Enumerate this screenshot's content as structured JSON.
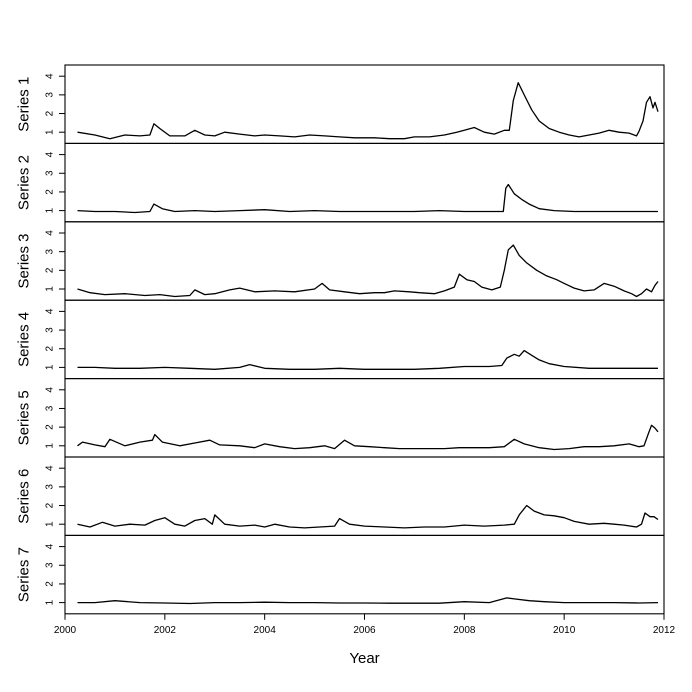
{
  "chart_data": {
    "type": "line",
    "title": "",
    "xlabel": "Year",
    "xlim": [
      2000,
      2012
    ],
    "x_ticks": [
      "2000",
      "2002",
      "2004",
      "2006",
      "2008",
      "2010",
      "2012"
    ],
    "ylim": [
      0.4,
      4.6
    ],
    "y_ticks": [
      "1",
      "2",
      "3",
      "4"
    ],
    "grid": false,
    "legend": "none",
    "series": [
      {
        "name": "Series 1",
        "points": [
          [
            2000.25,
            1.0
          ],
          [
            2000.6,
            0.85
          ],
          [
            2000.9,
            0.65
          ],
          [
            2001.2,
            0.85
          ],
          [
            2001.5,
            0.8
          ],
          [
            2001.7,
            0.85
          ],
          [
            2001.78,
            1.45
          ],
          [
            2001.9,
            1.2
          ],
          [
            2002.1,
            0.8
          ],
          [
            2002.4,
            0.8
          ],
          [
            2002.6,
            1.1
          ],
          [
            2002.8,
            0.85
          ],
          [
            2003.0,
            0.8
          ],
          [
            2003.2,
            1.0
          ],
          [
            2003.5,
            0.9
          ],
          [
            2003.8,
            0.8
          ],
          [
            2004.0,
            0.85
          ],
          [
            2004.3,
            0.8
          ],
          [
            2004.6,
            0.75
          ],
          [
            2004.9,
            0.85
          ],
          [
            2005.2,
            0.8
          ],
          [
            2005.5,
            0.75
          ],
          [
            2005.8,
            0.7
          ],
          [
            2006.2,
            0.7
          ],
          [
            2006.5,
            0.65
          ],
          [
            2006.8,
            0.65
          ],
          [
            2007.0,
            0.75
          ],
          [
            2007.3,
            0.75
          ],
          [
            2007.6,
            0.85
          ],
          [
            2007.85,
            1.0
          ],
          [
            2008.0,
            1.1
          ],
          [
            2008.2,
            1.25
          ],
          [
            2008.4,
            1.0
          ],
          [
            2008.6,
            0.9
          ],
          [
            2008.8,
            1.1
          ],
          [
            2008.9,
            1.1
          ],
          [
            2008.98,
            2.7
          ],
          [
            2009.08,
            3.65
          ],
          [
            2009.2,
            3.0
          ],
          [
            2009.35,
            2.2
          ],
          [
            2009.5,
            1.6
          ],
          [
            2009.7,
            1.2
          ],
          [
            2009.9,
            1.0
          ],
          [
            2010.1,
            0.85
          ],
          [
            2010.3,
            0.75
          ],
          [
            2010.5,
            0.85
          ],
          [
            2010.7,
            0.95
          ],
          [
            2010.9,
            1.1
          ],
          [
            2011.1,
            1.0
          ],
          [
            2011.3,
            0.95
          ],
          [
            2011.45,
            0.8
          ],
          [
            2011.5,
            1.05
          ],
          [
            2011.58,
            1.6
          ],
          [
            2011.65,
            2.6
          ],
          [
            2011.72,
            2.9
          ],
          [
            2011.78,
            2.3
          ],
          [
            2011.82,
            2.6
          ],
          [
            2011.88,
            2.1
          ]
        ]
      },
      {
        "name": "Series 2",
        "points": [
          [
            2000.25,
            1.0
          ],
          [
            2000.6,
            0.95
          ],
          [
            2001.0,
            0.95
          ],
          [
            2001.4,
            0.9
          ],
          [
            2001.7,
            0.95
          ],
          [
            2001.78,
            1.35
          ],
          [
            2001.95,
            1.1
          ],
          [
            2002.2,
            0.95
          ],
          [
            2002.6,
            1.0
          ],
          [
            2003.0,
            0.95
          ],
          [
            2003.5,
            1.0
          ],
          [
            2004.0,
            1.05
          ],
          [
            2004.5,
            0.95
          ],
          [
            2005.0,
            1.0
          ],
          [
            2005.5,
            0.95
          ],
          [
            2006.0,
            0.95
          ],
          [
            2006.5,
            0.95
          ],
          [
            2007.0,
            0.95
          ],
          [
            2007.5,
            1.0
          ],
          [
            2008.0,
            0.95
          ],
          [
            2008.5,
            0.95
          ],
          [
            2008.78,
            0.95
          ],
          [
            2008.83,
            2.2
          ],
          [
            2008.88,
            2.4
          ],
          [
            2009.0,
            1.9
          ],
          [
            2009.15,
            1.6
          ],
          [
            2009.3,
            1.35
          ],
          [
            2009.5,
            1.1
          ],
          [
            2009.8,
            1.0
          ],
          [
            2010.2,
            0.95
          ],
          [
            2010.6,
            0.95
          ],
          [
            2011.0,
            0.95
          ],
          [
            2011.5,
            0.95
          ],
          [
            2011.88,
            0.95
          ]
        ]
      },
      {
        "name": "Series 3",
        "points": [
          [
            2000.25,
            1.0
          ],
          [
            2000.5,
            0.8
          ],
          [
            2000.8,
            0.7
          ],
          [
            2001.2,
            0.75
          ],
          [
            2001.6,
            0.65
          ],
          [
            2001.9,
            0.7
          ],
          [
            2002.2,
            0.6
          ],
          [
            2002.5,
            0.65
          ],
          [
            2002.6,
            0.95
          ],
          [
            2002.8,
            0.7
          ],
          [
            2003.0,
            0.75
          ],
          [
            2003.3,
            0.95
          ],
          [
            2003.5,
            1.05
          ],
          [
            2003.8,
            0.85
          ],
          [
            2004.2,
            0.9
          ],
          [
            2004.6,
            0.85
          ],
          [
            2005.0,
            1.0
          ],
          [
            2005.15,
            1.3
          ],
          [
            2005.3,
            0.95
          ],
          [
            2005.6,
            0.85
          ],
          [
            2005.9,
            0.75
          ],
          [
            2006.2,
            0.8
          ],
          [
            2006.4,
            0.8
          ],
          [
            2006.6,
            0.9
          ],
          [
            2006.9,
            0.85
          ],
          [
            2007.1,
            0.8
          ],
          [
            2007.4,
            0.75
          ],
          [
            2007.6,
            0.9
          ],
          [
            2007.8,
            1.1
          ],
          [
            2007.9,
            1.8
          ],
          [
            2008.05,
            1.5
          ],
          [
            2008.2,
            1.4
          ],
          [
            2008.35,
            1.1
          ],
          [
            2008.55,
            0.95
          ],
          [
            2008.72,
            1.1
          ],
          [
            2008.8,
            2.0
          ],
          [
            2008.88,
            3.1
          ],
          [
            2008.98,
            3.35
          ],
          [
            2009.1,
            2.8
          ],
          [
            2009.25,
            2.4
          ],
          [
            2009.45,
            2.0
          ],
          [
            2009.65,
            1.7
          ],
          [
            2009.85,
            1.5
          ],
          [
            2010.0,
            1.3
          ],
          [
            2010.2,
            1.05
          ],
          [
            2010.4,
            0.9
          ],
          [
            2010.6,
            0.95
          ],
          [
            2010.8,
            1.3
          ],
          [
            2011.0,
            1.15
          ],
          [
            2011.2,
            0.9
          ],
          [
            2011.35,
            0.75
          ],
          [
            2011.45,
            0.6
          ],
          [
            2011.55,
            0.75
          ],
          [
            2011.65,
            1.0
          ],
          [
            2011.75,
            0.85
          ],
          [
            2011.82,
            1.2
          ],
          [
            2011.88,
            1.4
          ]
        ]
      },
      {
        "name": "Series 4",
        "points": [
          [
            2000.25,
            1.0
          ],
          [
            2000.6,
            1.0
          ],
          [
            2001.0,
            0.95
          ],
          [
            2001.5,
            0.95
          ],
          [
            2002.0,
            1.0
          ],
          [
            2002.5,
            0.95
          ],
          [
            2003.0,
            0.9
          ],
          [
            2003.5,
            1.0
          ],
          [
            2003.7,
            1.15
          ],
          [
            2004.0,
            0.95
          ],
          [
            2004.5,
            0.9
          ],
          [
            2005.0,
            0.9
          ],
          [
            2005.5,
            0.95
          ],
          [
            2006.0,
            0.9
          ],
          [
            2006.5,
            0.9
          ],
          [
            2007.0,
            0.9
          ],
          [
            2007.5,
            0.95
          ],
          [
            2008.0,
            1.05
          ],
          [
            2008.5,
            1.05
          ],
          [
            2008.75,
            1.1
          ],
          [
            2008.85,
            1.5
          ],
          [
            2009.0,
            1.7
          ],
          [
            2009.1,
            1.6
          ],
          [
            2009.2,
            1.9
          ],
          [
            2009.35,
            1.65
          ],
          [
            2009.5,
            1.4
          ],
          [
            2009.7,
            1.2
          ],
          [
            2010.0,
            1.05
          ],
          [
            2010.5,
            0.95
          ],
          [
            2011.0,
            0.95
          ],
          [
            2011.5,
            0.95
          ],
          [
            2011.88,
            0.95
          ]
        ]
      },
      {
        "name": "Series 5",
        "points": [
          [
            2000.25,
            1.0
          ],
          [
            2000.35,
            1.2
          ],
          [
            2000.6,
            1.05
          ],
          [
            2000.8,
            0.95
          ],
          [
            2000.9,
            1.35
          ],
          [
            2001.2,
            1.0
          ],
          [
            2001.5,
            1.2
          ],
          [
            2001.75,
            1.3
          ],
          [
            2001.8,
            1.6
          ],
          [
            2001.95,
            1.2
          ],
          [
            2002.3,
            1.0
          ],
          [
            2002.6,
            1.15
          ],
          [
            2002.9,
            1.3
          ],
          [
            2003.1,
            1.05
          ],
          [
            2003.5,
            1.0
          ],
          [
            2003.8,
            0.9
          ],
          [
            2004.0,
            1.1
          ],
          [
            2004.3,
            0.95
          ],
          [
            2004.6,
            0.85
          ],
          [
            2004.9,
            0.9
          ],
          [
            2005.2,
            1.0
          ],
          [
            2005.4,
            0.85
          ],
          [
            2005.6,
            1.3
          ],
          [
            2005.8,
            1.0
          ],
          [
            2006.1,
            0.95
          ],
          [
            2006.4,
            0.9
          ],
          [
            2006.7,
            0.85
          ],
          [
            2007.0,
            0.85
          ],
          [
            2007.3,
            0.85
          ],
          [
            2007.6,
            0.85
          ],
          [
            2007.9,
            0.9
          ],
          [
            2008.2,
            0.9
          ],
          [
            2008.5,
            0.9
          ],
          [
            2008.8,
            0.95
          ],
          [
            2009.0,
            1.35
          ],
          [
            2009.2,
            1.1
          ],
          [
            2009.5,
            0.9
          ],
          [
            2009.8,
            0.8
          ],
          [
            2010.1,
            0.85
          ],
          [
            2010.4,
            0.95
          ],
          [
            2010.7,
            0.95
          ],
          [
            2011.0,
            1.0
          ],
          [
            2011.3,
            1.1
          ],
          [
            2011.5,
            0.95
          ],
          [
            2011.6,
            1.0
          ],
          [
            2011.68,
            1.6
          ],
          [
            2011.75,
            2.1
          ],
          [
            2011.82,
            1.95
          ],
          [
            2011.88,
            1.75
          ]
        ]
      },
      {
        "name": "Series 6",
        "points": [
          [
            2000.25,
            1.0
          ],
          [
            2000.5,
            0.85
          ],
          [
            2000.75,
            1.1
          ],
          [
            2001.0,
            0.9
          ],
          [
            2001.3,
            1.0
          ],
          [
            2001.6,
            0.95
          ],
          [
            2001.8,
            1.2
          ],
          [
            2002.0,
            1.35
          ],
          [
            2002.2,
            1.0
          ],
          [
            2002.4,
            0.9
          ],
          [
            2002.6,
            1.2
          ],
          [
            2002.8,
            1.3
          ],
          [
            2002.95,
            1.0
          ],
          [
            2003.0,
            1.5
          ],
          [
            2003.2,
            1.0
          ],
          [
            2003.5,
            0.9
          ],
          [
            2003.8,
            0.95
          ],
          [
            2004.0,
            0.85
          ],
          [
            2004.2,
            1.0
          ],
          [
            2004.5,
            0.85
          ],
          [
            2004.8,
            0.8
          ],
          [
            2005.1,
            0.85
          ],
          [
            2005.4,
            0.9
          ],
          [
            2005.5,
            1.3
          ],
          [
            2005.7,
            1.0
          ],
          [
            2006.0,
            0.9
          ],
          [
            2006.4,
            0.85
          ],
          [
            2006.8,
            0.8
          ],
          [
            2007.2,
            0.85
          ],
          [
            2007.6,
            0.85
          ],
          [
            2008.0,
            0.95
          ],
          [
            2008.4,
            0.9
          ],
          [
            2008.8,
            0.95
          ],
          [
            2009.0,
            1.0
          ],
          [
            2009.1,
            1.5
          ],
          [
            2009.25,
            2.0
          ],
          [
            2009.4,
            1.7
          ],
          [
            2009.6,
            1.5
          ],
          [
            2009.8,
            1.45
          ],
          [
            2010.0,
            1.35
          ],
          [
            2010.2,
            1.15
          ],
          [
            2010.5,
            1.0
          ],
          [
            2010.8,
            1.05
          ],
          [
            2011.0,
            1.0
          ],
          [
            2011.2,
            0.95
          ],
          [
            2011.45,
            0.85
          ],
          [
            2011.55,
            1.0
          ],
          [
            2011.62,
            1.6
          ],
          [
            2011.72,
            1.4
          ],
          [
            2011.8,
            1.4
          ],
          [
            2011.88,
            1.25
          ]
        ]
      },
      {
        "name": "Series 7",
        "points": [
          [
            2000.25,
            1.0
          ],
          [
            2000.6,
            1.0
          ],
          [
            2001.0,
            1.1
          ],
          [
            2001.5,
            1.0
          ],
          [
            2002.0,
            0.98
          ],
          [
            2002.5,
            0.95
          ],
          [
            2003.0,
            1.0
          ],
          [
            2003.5,
            1.0
          ],
          [
            2004.0,
            1.02
          ],
          [
            2004.5,
            1.0
          ],
          [
            2005.0,
            1.0
          ],
          [
            2005.5,
            0.98
          ],
          [
            2006.0,
            0.98
          ],
          [
            2006.5,
            0.97
          ],
          [
            2007.0,
            0.97
          ],
          [
            2007.5,
            0.97
          ],
          [
            2008.0,
            1.05
          ],
          [
            2008.5,
            1.0
          ],
          [
            2008.85,
            1.25
          ],
          [
            2009.0,
            1.2
          ],
          [
            2009.3,
            1.1
          ],
          [
            2009.6,
            1.05
          ],
          [
            2010.0,
            1.0
          ],
          [
            2010.5,
            1.0
          ],
          [
            2011.0,
            1.0
          ],
          [
            2011.5,
            0.98
          ],
          [
            2011.88,
            1.0
          ]
        ]
      }
    ]
  }
}
